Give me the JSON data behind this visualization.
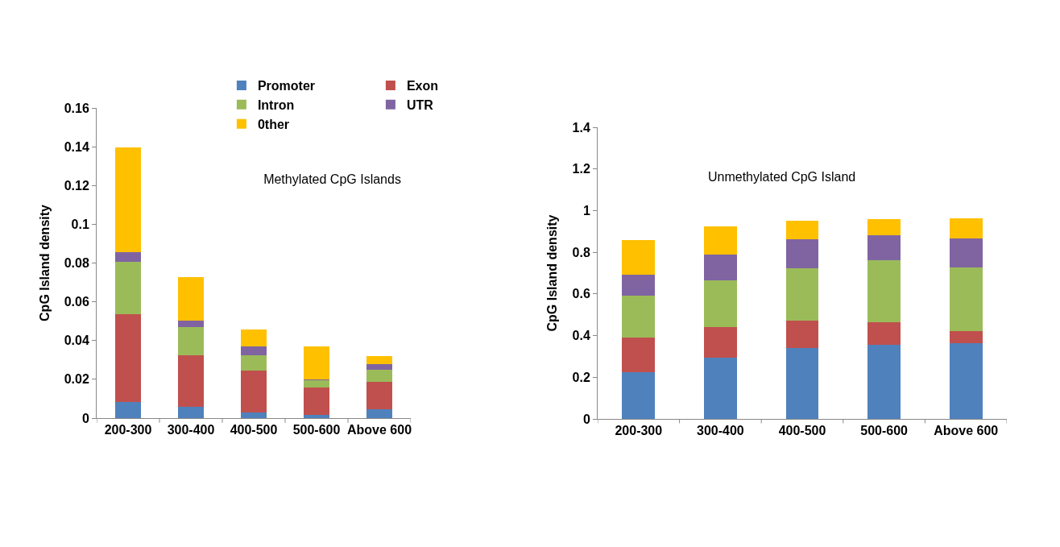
{
  "chart_data": [
    {
      "type": "bar",
      "stacked": true,
      "title": "Methylated CpG Islands",
      "ylabel": "CpG Island density",
      "categories": [
        "200-300",
        "300-400",
        "400-500",
        "500-600",
        "Above 600"
      ],
      "ylim": [
        0,
        0.16
      ],
      "yticks": [
        0,
        0.02,
        0.04,
        0.06,
        0.08,
        0.1,
        0.12,
        0.14,
        0.16
      ],
      "grid": false,
      "legend": "top",
      "series": [
        {
          "name": "Promoter",
          "color": "#4f81bd",
          "values": [
            0.0085,
            0.006,
            0.003,
            0.0017,
            0.0044
          ]
        },
        {
          "name": "Exon",
          "color": "#c0504d",
          "values": [
            0.045,
            0.0265,
            0.0215,
            0.0141,
            0.0144
          ]
        },
        {
          "name": "Intron",
          "color": "#9bbb59",
          "values": [
            0.027,
            0.0144,
            0.008,
            0.0039,
            0.0061
          ]
        },
        {
          "name": "UTR",
          "color": "#8064a2",
          "values": [
            0.005,
            0.0034,
            0.0043,
            0.0004,
            0.0031
          ]
        },
        {
          "name": "0ther",
          "color": "#ffc000",
          "values": [
            0.054,
            0.0223,
            0.0088,
            0.0169,
            0.0039
          ]
        }
      ]
    },
    {
      "type": "bar",
      "stacked": true,
      "title": "Unmethylated CpG Island",
      "ylabel": "CpG Island density",
      "categories": [
        "200-300",
        "300-400",
        "400-500",
        "500-600",
        "Above 600"
      ],
      "ylim": [
        0,
        1.4
      ],
      "yticks": [
        0,
        0.2,
        0.4,
        0.6,
        0.8,
        1,
        1.2,
        1.4
      ],
      "grid": false,
      "legend": false,
      "series": [
        {
          "color": "#4f81bd",
          "values": [
            0.223,
            0.294,
            0.339,
            0.357,
            0.362
          ]
        },
        {
          "color": "#c0504d",
          "values": [
            0.166,
            0.147,
            0.132,
            0.108,
            0.061
          ]
        },
        {
          "color": "#9bbb59",
          "values": [
            0.201,
            0.223,
            0.252,
            0.296,
            0.303
          ]
        },
        {
          "color": "#8064a2",
          "values": [
            0.102,
            0.125,
            0.138,
            0.122,
            0.141
          ]
        },
        {
          "color": "#ffc000",
          "values": [
            0.166,
            0.136,
            0.09,
            0.077,
            0.097
          ]
        }
      ]
    }
  ]
}
